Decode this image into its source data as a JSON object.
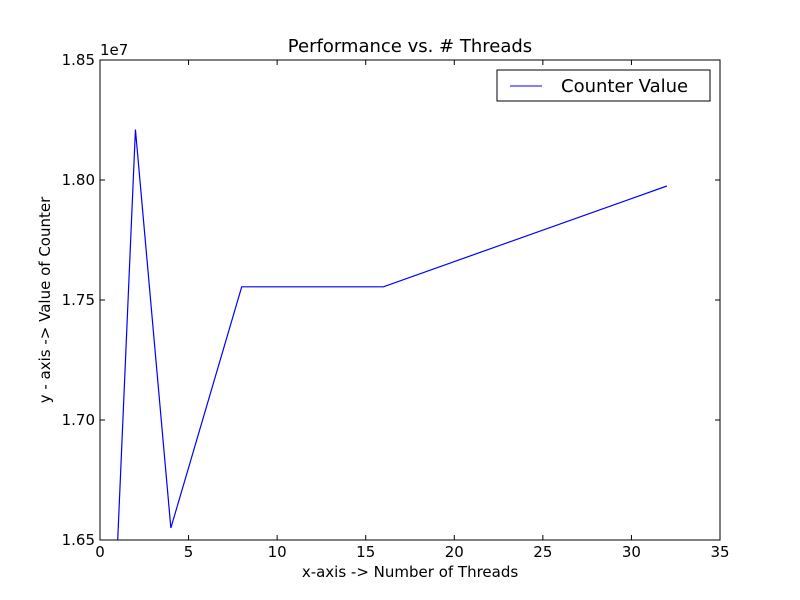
{
  "chart_data": {
    "type": "line",
    "title": "Performance vs. # Threads",
    "xlabel": "x-axis -> Number of Threads",
    "ylabel": "y - axis -> Value of Counter",
    "y_offset_label": "1e7",
    "xlim": [
      0,
      35
    ],
    "ylim": [
      1.65,
      1.85
    ],
    "x_ticks": [
      "0",
      "5",
      "10",
      "15",
      "20",
      "25",
      "30",
      "35"
    ],
    "y_ticks": [
      "1.65",
      "1.70",
      "1.75",
      "1.80",
      "1.85"
    ],
    "grid": false,
    "legend_position": "top-right",
    "series": [
      {
        "name": "Counter Value",
        "color": "#0000ff",
        "x": [
          1,
          2,
          4,
          8,
          16,
          32
        ],
        "y": [
          1.65,
          1.821,
          1.655,
          1.7555,
          1.7555,
          1.7975
        ]
      }
    ]
  }
}
